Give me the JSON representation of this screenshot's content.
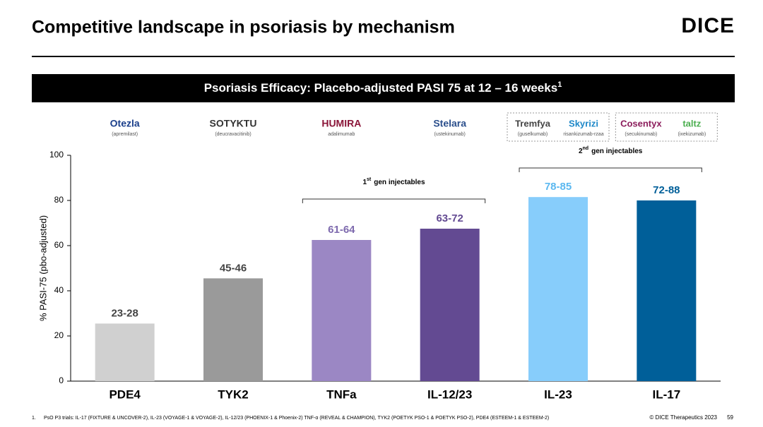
{
  "header": {
    "title": "Competitive landscape in psoriasis by mechanism",
    "logo": "DICE"
  },
  "chart_data": {
    "type": "bar",
    "title": "Psoriasis Efficacy: Placebo-adjusted PASI 75 at 12 – 16 weeks",
    "title_note": "1",
    "ylabel": "% PASI-75 (pbo-adjusted)",
    "categories": [
      "PDE4",
      "TYK2",
      "TNFa",
      "IL-12/23",
      "IL-23",
      "IL-17"
    ],
    "values": [
      25.5,
      45.5,
      62.5,
      67.5,
      81.5,
      80
    ],
    "value_labels": [
      "23-28",
      "45-46",
      "61-64",
      "63-72",
      "78-85",
      "72-88"
    ],
    "colors": [
      "#d0d0d0",
      "#9a9a9a",
      "#9b87c4",
      "#634a92",
      "#87cdfb",
      "#005f99"
    ],
    "label_colors": [
      "#444444",
      "#444444",
      "#7e6aae",
      "#634a92",
      "#5bb8f0",
      "#005f99"
    ],
    "ylim": [
      0,
      100
    ],
    "yticks": [
      0,
      20,
      40,
      60,
      80,
      100
    ],
    "annotations": [
      {
        "number": "1",
        "sup": "st",
        "text": "gen injectables"
      },
      {
        "number": "2",
        "sup": "nd",
        "text": "gen injectables"
      }
    ],
    "brands": [
      [
        {
          "name": "Otezla",
          "generic": "(apremilast)"
        }
      ],
      [
        {
          "name": "SOTYKTU",
          "generic": "(deucravacitinib)"
        }
      ],
      [
        {
          "name": "HUMIRA",
          "generic": "adalimumab"
        }
      ],
      [
        {
          "name": "Stelara",
          "generic": "(ustekinumab)"
        }
      ],
      [
        {
          "name": "Tremfya",
          "generic": "(guselkumab)"
        },
        {
          "name": "Skyrizi",
          "generic": "risankizumab-rzaa"
        }
      ],
      [
        {
          "name": "Cosentyx",
          "generic": "(secukinumab)"
        },
        {
          "name": "taltz",
          "generic": "(ixekizumab)"
        }
      ]
    ]
  },
  "footer": {
    "footnote_number": "1.",
    "footnote": "PsO P3 trials: IL-17 (FIXTURE & UNCOVER-2), IL-23 (VOYAGE-1 & VOYAGE-2), IL-12/23 (PHOENIX-1 & Phoenix-2) TNF-α (REVEAL & CHAMPION), TYK2 (POETYK PSO-1 & POETYK PSO-2), PDE4 (ESTEEM-1 & ESTEEM-2)",
    "copyright": "© DICE Therapeutics 2023",
    "page": "59"
  }
}
